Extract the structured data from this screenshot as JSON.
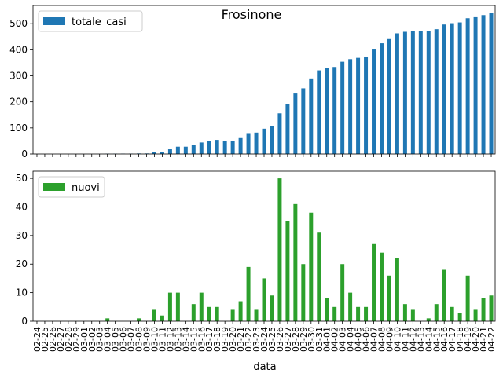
{
  "chart_data": {
    "title": "Frosinone",
    "xlabel": "data",
    "type": "bar",
    "categories": [
      "02-24",
      "02-25",
      "02-26",
      "02-27",
      "02-28",
      "02-29",
      "03-01",
      "03-02",
      "03-03",
      "03-04",
      "03-05",
      "03-06",
      "03-07",
      "03-08",
      "03-09",
      "03-10",
      "03-11",
      "03-12",
      "03-13",
      "03-14",
      "03-15",
      "03-16",
      "03-17",
      "03-18",
      "03-19",
      "03-20",
      "03-21",
      "03-22",
      "03-23",
      "03-24",
      "03-25",
      "03-26",
      "03-27",
      "03-28",
      "03-29",
      "03-30",
      "03-31",
      "04-01",
      "04-02",
      "04-03",
      "04-04",
      "04-05",
      "04-06",
      "04-07",
      "04-08",
      "04-09",
      "04-10",
      "04-11",
      "04-12",
      "04-13",
      "04-14",
      "04-15",
      "04-16",
      "04-17",
      "04-18",
      "04-19",
      "04-20",
      "04-21",
      "04-22"
    ],
    "panels": [
      {
        "series": [
          {
            "name": "totale_casi",
            "color": "#1f77b4",
            "values": [
              0,
              0,
              0,
              0,
              0,
              0,
              0,
              0,
              0,
              1,
              1,
              1,
              1,
              2,
              2,
              6,
              8,
              18,
              28,
              28,
              34,
              44,
              49,
              54,
              49,
              50,
              61,
              80,
              82,
              97,
              106,
              156,
              191,
              232,
              252,
              290,
              321,
              329,
              334,
              354,
              364,
              369,
              374,
              401,
              425,
              441,
              463,
              469,
              473,
              473,
              473,
              479,
              497,
              502,
              505,
              521,
              525,
              533,
              542
            ]
          }
        ],
        "ylim": [
          0,
          570
        ],
        "yticks": [
          0,
          100,
          200,
          300,
          400,
          500
        ],
        "legend": "top-left"
      },
      {
        "series": [
          {
            "name": "nuovi",
            "color": "#2ca02c",
            "values": [
              0,
              0,
              0,
              0,
              0,
              0,
              0,
              0,
              0,
              1,
              0,
              0,
              0,
              1,
              0,
              4,
              2,
              10,
              10,
              0,
              6,
              10,
              5,
              5,
              0,
              4,
              7,
              19,
              4,
              15,
              9,
              50,
              35,
              41,
              20,
              38,
              31,
              8,
              5,
              20,
              10,
              5,
              5,
              27,
              24,
              16,
              22,
              6,
              4,
              0,
              1,
              6,
              18,
              5,
              3,
              16,
              4,
              8,
              9
            ]
          }
        ],
        "ylim": [
          0,
          52.5
        ],
        "yticks": [
          0,
          10,
          20,
          30,
          40,
          50
        ],
        "legend": "top-left"
      }
    ]
  }
}
